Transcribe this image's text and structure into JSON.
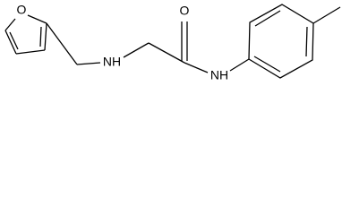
{
  "atoms": [
    "O",
    "NH",
    "O",
    "NH"
  ]
}
